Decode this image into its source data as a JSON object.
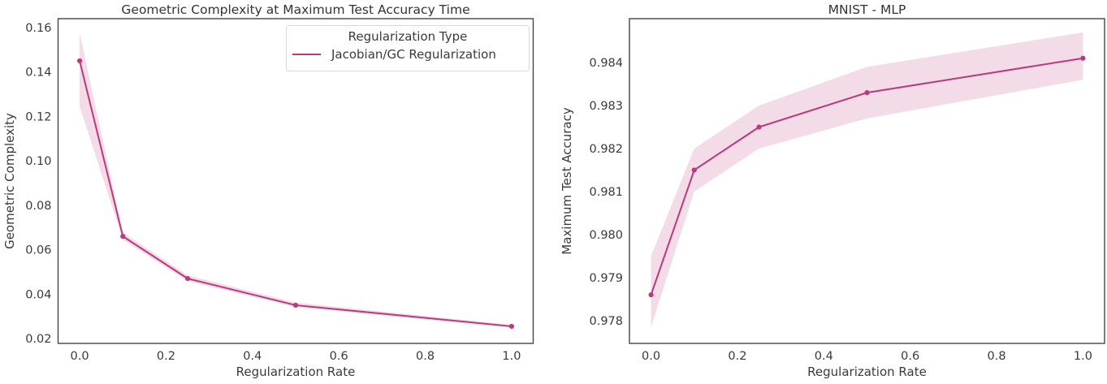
{
  "figure": {
    "background": "#ffffff",
    "text_color": "#3a3a3a",
    "spine_color": "#454545"
  },
  "chart_data": [
    {
      "type": "line",
      "title": "Geometric Complexity at Maximum Test Accuracy Time",
      "xlabel": "Regularization Rate",
      "ylabel": "Geometric Complexity",
      "xlim": [
        -0.05,
        1.05
      ],
      "ylim": [
        0.0178,
        0.164
      ],
      "grid": false,
      "xticks": {
        "values": [
          0.0,
          0.2,
          0.4,
          0.6,
          0.8,
          1.0
        ],
        "labels": [
          "0.0",
          "0.2",
          "0.4",
          "0.6",
          "0.8",
          "1.0"
        ]
      },
      "yticks": {
        "values": [
          0.02,
          0.04,
          0.06,
          0.08,
          0.1,
          0.12,
          0.14,
          0.16
        ],
        "labels": [
          "0.02",
          "0.04",
          "0.06",
          "0.08",
          "0.10",
          "0.12",
          "0.14",
          "0.16"
        ]
      },
      "series": [
        {
          "name": "Jacobian/GC Regularization",
          "x": [
            0.0,
            0.1,
            0.25,
            0.5,
            1.0
          ],
          "y": [
            0.145,
            0.066,
            0.047,
            0.035,
            0.0255
          ],
          "band_lower": [
            0.1245,
            0.0645,
            0.0458,
            0.0342,
            0.0248
          ],
          "band_upper": [
            0.1575,
            0.0678,
            0.0484,
            0.0362,
            0.0262
          ],
          "color": "#b93a7d",
          "band_color": "#f2d7e6"
        }
      ],
      "legend": {
        "position": "upper right",
        "title": "Regularization Type",
        "entries": [
          {
            "label": "Jacobian/GC Regularization",
            "color": "#b93a7d"
          }
        ]
      }
    },
    {
      "type": "line",
      "title": "MNIST - MLP",
      "xlabel": "Regularization Rate",
      "ylabel": "Maximum Test Accuracy",
      "xlim": [
        -0.05,
        1.05
      ],
      "ylim": [
        0.97747,
        0.98502
      ],
      "grid": false,
      "xticks": {
        "values": [
          0.0,
          0.2,
          0.4,
          0.6,
          0.8,
          1.0
        ],
        "labels": [
          "0.0",
          "0.2",
          "0.4",
          "0.6",
          "0.8",
          "1.0"
        ]
      },
      "yticks": {
        "values": [
          0.978,
          0.979,
          0.98,
          0.981,
          0.982,
          0.983,
          0.984
        ],
        "labels": [
          "0.978",
          "0.979",
          "0.980",
          "0.981",
          "0.982",
          "0.983",
          "0.984"
        ]
      },
      "series": [
        {
          "name": "Jacobian/GC Regularization",
          "x": [
            0.0,
            0.1,
            0.25,
            0.5,
            1.0
          ],
          "y": [
            0.9786,
            0.9815,
            0.9825,
            0.9833,
            0.9841
          ],
          "band_lower": [
            0.97785,
            0.981,
            0.982,
            0.9827,
            0.9836
          ],
          "band_upper": [
            0.9795,
            0.982,
            0.983,
            0.9839,
            0.9847
          ],
          "color": "#b93a7d",
          "band_color": "#f2d7e6"
        }
      ],
      "legend": null
    }
  ]
}
